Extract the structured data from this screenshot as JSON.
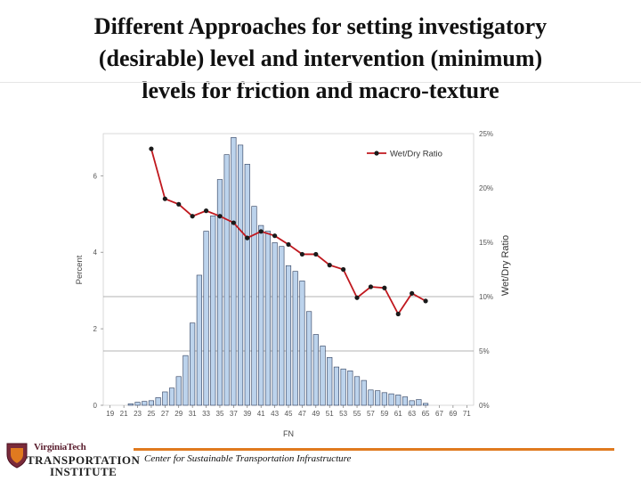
{
  "slide": {
    "title_line1": "Different Approaches for setting investigatory",
    "title_line2": "(desirable) level and intervention (minimum)",
    "title_line3": "levels for friction and macro-texture"
  },
  "footer": {
    "logo_top": "VirginiaTech",
    "logo_mid": "TRANSPORTATION",
    "logo_bot": "INSTITUTE",
    "text": "Center for Sustainable Transportation Infrastructure"
  },
  "colors": {
    "bar_fill": "#bcd3ec",
    "bar_stroke": "#2a3a5a",
    "line": "#c0181e",
    "marker": "#1a1a1a",
    "threshold": "#9a9a9a",
    "brand_maroon": "#5a1e2e",
    "footer_orange": "#e07a1f"
  },
  "chart_data": {
    "type": "bar",
    "xlabel": "FN",
    "ylabel": "Percent",
    "y2label": "Wet/Dry Ratio",
    "x_ticks": [
      "19",
      "21",
      "23",
      "25",
      "27",
      "29",
      "31",
      "33",
      "35",
      "37",
      "39",
      "41",
      "43",
      "45",
      "47",
      "49",
      "51",
      "53",
      "55",
      "57",
      "59",
      "61",
      "63",
      "65",
      "67",
      "69",
      "71"
    ],
    "y_ticks": [
      "0",
      "2",
      "4",
      "6"
    ],
    "y2_ticks": [
      "0%",
      "5%",
      "10%",
      "15%",
      "20%",
      "25%"
    ],
    "xlim": [
      18,
      72
    ],
    "ylim": [
      0,
      7.1
    ],
    "y2lim": [
      0,
      25
    ],
    "grid": false,
    "threshold_lines_y2": [
      5,
      10
    ],
    "series": [
      {
        "name": "",
        "type": "bar",
        "axis": "left",
        "x": [
          22,
          23,
          24,
          25,
          26,
          27,
          28,
          29,
          30,
          31,
          32,
          33,
          34,
          35,
          36,
          37,
          38,
          39,
          40,
          41,
          42,
          43,
          44,
          45,
          46,
          47,
          48,
          49,
          50,
          51,
          52,
          53,
          54,
          55,
          56,
          57,
          58,
          59,
          60,
          61,
          62,
          63,
          64,
          65
        ],
        "values": [
          0.04,
          0.08,
          0.1,
          0.12,
          0.2,
          0.35,
          0.45,
          0.75,
          1.3,
          2.15,
          3.4,
          4.55,
          4.95,
          5.9,
          6.55,
          7.0,
          6.8,
          6.3,
          5.2,
          4.7,
          4.55,
          4.25,
          4.15,
          3.65,
          3.5,
          3.25,
          2.45,
          1.85,
          1.55,
          1.25,
          1.0,
          0.95,
          0.9,
          0.75,
          0.65,
          0.4,
          0.38,
          0.33,
          0.3,
          0.27,
          0.22,
          0.12,
          0.15,
          0.05
        ]
      },
      {
        "name": "Wet/Dry Ratio",
        "type": "line",
        "axis": "right",
        "x": [
          25,
          27,
          29,
          31,
          33,
          35,
          37,
          39,
          41,
          43,
          45,
          47,
          49,
          51,
          53,
          55,
          57,
          59,
          61,
          63,
          65
        ],
        "values": [
          23.6,
          19.0,
          18.5,
          17.4,
          17.9,
          17.4,
          16.8,
          15.4,
          16.0,
          15.6,
          14.8,
          13.9,
          13.9,
          12.9,
          12.5,
          9.9,
          10.9,
          10.8,
          8.4,
          10.3,
          9.6
        ]
      }
    ]
  }
}
